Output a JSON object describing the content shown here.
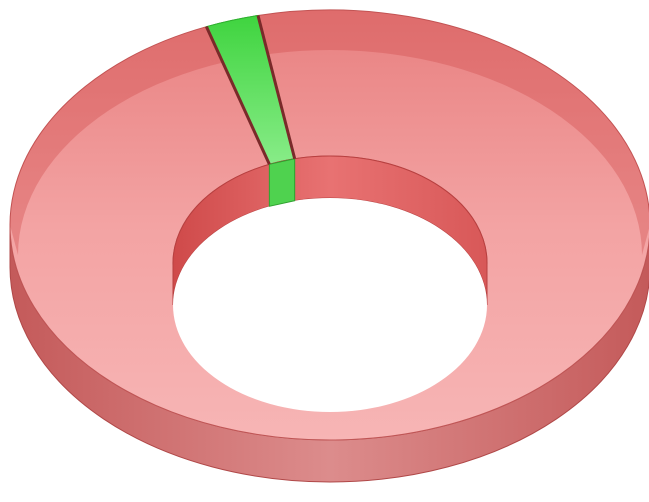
{
  "chart_data": {
    "type": "pie",
    "style": "3d-donut",
    "title": "",
    "categories": [
      "",
      ""
    ],
    "values": [
      97.3,
      2.7
    ],
    "colors": [
      "#ef6b6b",
      "#5ae05a"
    ],
    "legend": "none",
    "data_labels": "none"
  }
}
